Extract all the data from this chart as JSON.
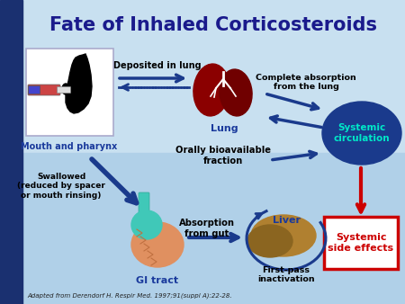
{
  "title": "Fate of Inhaled Corticosteroids",
  "title_color": "#1a1a8c",
  "title_fontsize": 15,
  "labels": {
    "mouth": "Mouth and pharynx",
    "lung": "Lung",
    "deposited": "Deposited in lung",
    "complete_absorption": "Complete absorption\nfrom the lung",
    "systemic_circulation": "Systemic\ncirculation",
    "orally_bioavailable": "Orally bioavailable\nfraction",
    "swallowed": "Swallowed\n(reduced by spacer\nor mouth rinsing)",
    "gi_tract": "GI tract",
    "absorption_gut": "Absorption\nfrom gut",
    "liver": "Liver",
    "first_pass": "First-pass\ninactivation",
    "systemic_effects": "Systemic\nside effects",
    "citation": "Adapted from Derendorf H. Respir Med. 1997;91(suppl A):22-28."
  },
  "colors": {
    "dark_blue": "#1a3a8c",
    "medium_blue": "#1a3a9c",
    "lung_red": "#8b0000",
    "lung_red2": "#700000",
    "liver_brown": "#a07830",
    "liver_brown2": "#8B6520",
    "gi_orange": "#e09060",
    "gi_teal": "#40c8b8",
    "systemic_circle": "#1a3a8c",
    "systemic_circle_text": "#00e8c8",
    "red_arrow": "#cc0000",
    "red_box_edge": "#cc0000",
    "red_text": "#cc0000",
    "white": "#ffffff",
    "black": "#000000",
    "bg": "#b0d0e8",
    "bg_top": "#c8e0f0",
    "left_bar": "#1a3070"
  }
}
